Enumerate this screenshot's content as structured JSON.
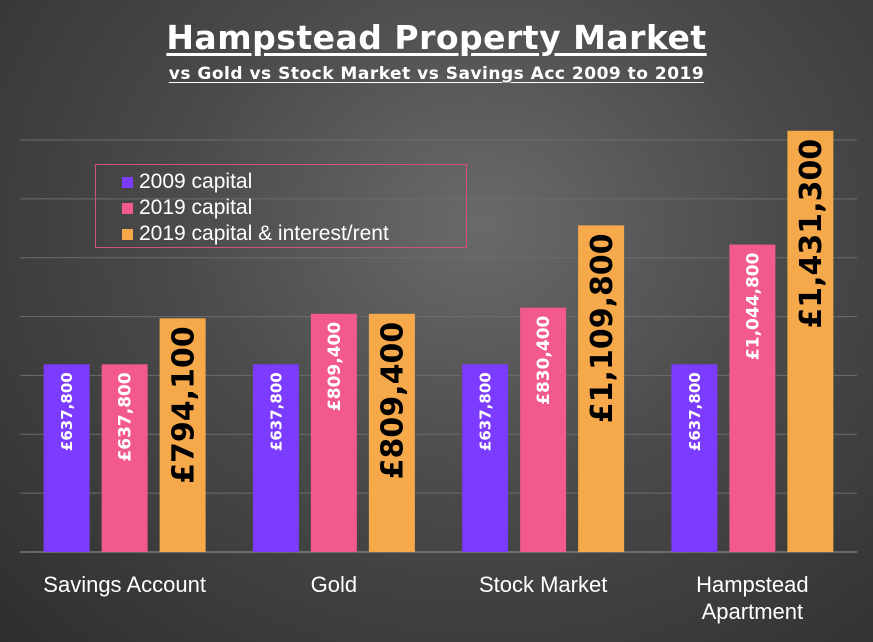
{
  "title": "Hampstead Property Market",
  "subtitle": "vs Gold vs Stock Market vs Savings Acc 2009 to 2019",
  "chart_data": {
    "type": "bar",
    "title": "Hampstead Property Market",
    "subtitle": "vs Gold vs Stock Market vs Savings Acc 2009 to 2019",
    "categories": [
      [
        "Savings Account"
      ],
      [
        "Gold"
      ],
      [
        "Stock Market"
      ],
      [
        "Hampstead",
        "Apartment"
      ]
    ],
    "series": [
      {
        "name": "2009 capital",
        "color": "#7c3cff",
        "values": [
          637800,
          637800,
          637800,
          637800
        ],
        "labels": [
          "£637,800",
          "£637,800",
          "£637,800",
          "£637,800"
        ]
      },
      {
        "name": "2019 capital",
        "color": "#f25a8c",
        "values": [
          637800,
          809400,
          830400,
          1044800
        ],
        "labels": [
          "£637,800",
          "£809,400",
          "£830,400",
          "£1,044,800"
        ]
      },
      {
        "name": "2019 capital & interest/rent",
        "color": "#f5a94a",
        "values": [
          794100,
          809400,
          1109800,
          1431300
        ],
        "labels": [
          "£794,100",
          "£809,400",
          "£1,109,800",
          "£1,431,300"
        ]
      }
    ],
    "ylim": [
      0,
      1400000
    ],
    "gridlines": true,
    "legend": "top-left"
  }
}
